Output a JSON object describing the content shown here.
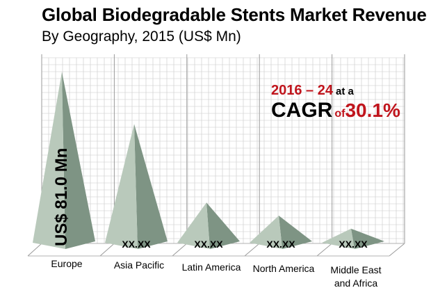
{
  "title": "Global Biodegradable Stents Market Revenue",
  "subtitle": "By Geography, 2015 (US$ Mn)",
  "callout": {
    "years": "2016 – 24",
    "at_a": "at a",
    "cagr": "CAGR",
    "of": "of",
    "rate": "30.1%"
  },
  "colors": {
    "pyramid_light": "#b9c9bb",
    "pyramid_dark": "#7e9484",
    "grid": "#c8c8c8",
    "accent_red": "#c0141c"
  },
  "chart_data": {
    "type": "bar",
    "categories": [
      "Europe",
      "Asia Pacific",
      "Latin America",
      "North America",
      "Middle East\nand Africa"
    ],
    "values": [
      81.0,
      57,
      21,
      15,
      9
    ],
    "data_labels": [
      "US$ 81.0 Mn",
      "XX.XX",
      "XX.XX",
      "XX.XX",
      "XX.XX"
    ],
    "title": "Global Biodegradable Stents Market Revenue",
    "subtitle": "By Geography, 2015 (US$ Mn)",
    "xlabel": "",
    "ylabel": "",
    "ylim": [
      0,
      90
    ],
    "grid": true,
    "legend": "none",
    "mark_shape": "pyramid"
  }
}
